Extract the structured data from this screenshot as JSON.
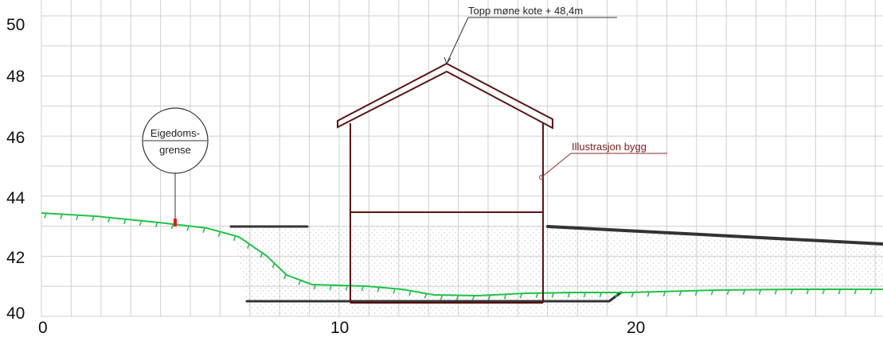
{
  "axes": {
    "y_ticks": [
      "50",
      "48",
      "46",
      "44",
      "42",
      "40"
    ],
    "x_ticks": [
      "0",
      "10",
      "20"
    ]
  },
  "annotations": {
    "roof_top": "Topp møne kote + 48,4m",
    "building": "Illustrasjon bygg",
    "boundary_line1": "Eigedoms-",
    "boundary_line2": "grense"
  },
  "colors": {
    "grid": "#cfcfcf",
    "building": "#5a1414",
    "terrain_existing": "#22c24a",
    "terrain_new": "#333333",
    "fill_dots": "#9a9a9a",
    "marker": "#e0201c"
  }
}
